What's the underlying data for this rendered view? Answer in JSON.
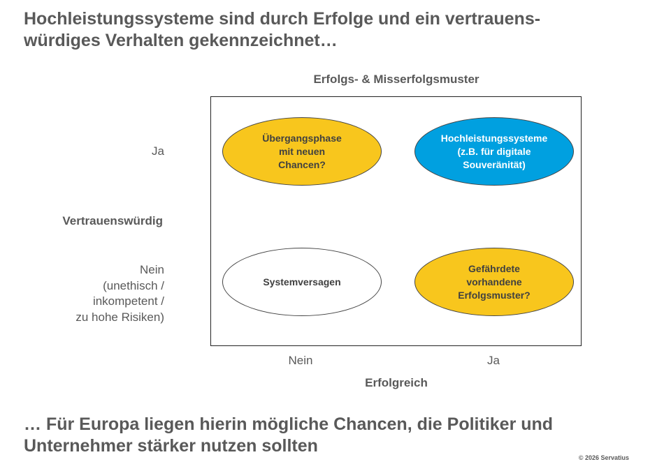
{
  "slide": {
    "title": "Hochleistungssysteme sind durch Erfolge und ein vertrauens-\nwürdiges Verhalten gekennzeichnet…",
    "footer": "… Für Europa liegen hierin mögliche Chancen, die Politiker und\nUnternehmer stärker nutzen sollten",
    "copyright": "© 2026 Servatius"
  },
  "matrix": {
    "title": "Erfolgs- & Misserfolgsmuster",
    "y_axis": {
      "title": "Vertrauenswürdig",
      "yes": "Ja",
      "no": "Nein\n(unethisch /\ninkompetent /\nzu hohe Risiken)"
    },
    "x_axis": {
      "title": "Erfolgreich",
      "no": "Nein",
      "yes": "Ja"
    },
    "quadrants": {
      "top_left": "Übergangsphase\nmit neuen\nChancen?",
      "top_right": "Hochleistungssysteme\n(z.B. für digitale\nSouveränität)",
      "bottom_left": "Systemversagen",
      "bottom_right": "Gefährdete\nvorhandene\nErfolgsmuster?"
    },
    "colors": {
      "yellow": "#f8c61d",
      "blue": "#00a0e0",
      "white": "#ffffff"
    }
  }
}
